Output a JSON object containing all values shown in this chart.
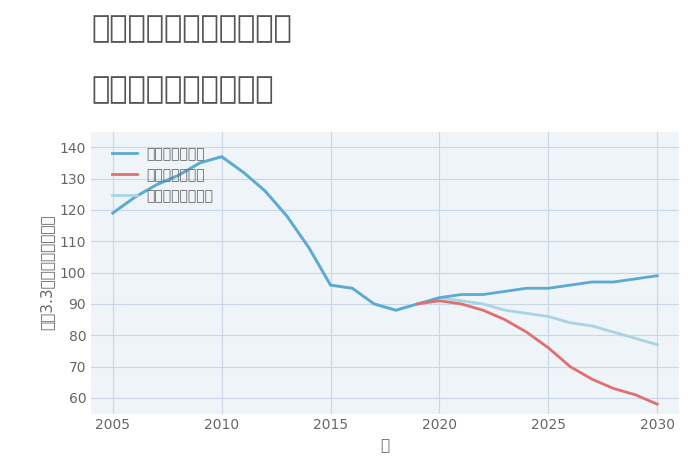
{
  "title_line1": "兵庫県豊岡市出石町嶋の",
  "title_line2": "中古戸建ての価格推移",
  "xlabel": "年",
  "ylabel": "坪（3.3㎡）単価（万円）",
  "background_color": "#ffffff",
  "grid_color": "#c8d8e8",
  "plot_bg_color": "#eef4f8",
  "good_scenario": {
    "label": "グッドシナリオ",
    "color": "#5baad0",
    "years": [
      2005,
      2006,
      2007,
      2008,
      2009,
      2010,
      2011,
      2012,
      2013,
      2014,
      2015,
      2016,
      2017,
      2018,
      2019,
      2020,
      2021,
      2022,
      2023,
      2024,
      2025,
      2026,
      2027,
      2028,
      2029,
      2030
    ],
    "values": [
      119,
      124,
      128,
      131,
      135,
      137,
      132,
      126,
      118,
      108,
      96,
      95,
      90,
      88,
      90,
      92,
      93,
      93,
      94,
      95,
      95,
      96,
      97,
      97,
      98,
      99
    ]
  },
  "bad_scenario": {
    "label": "バッドシナリオ",
    "color": "#e07070",
    "years": [
      2019,
      2020,
      2021,
      2022,
      2023,
      2024,
      2025,
      2026,
      2027,
      2028,
      2029,
      2030
    ],
    "values": [
      90,
      91,
      90,
      88,
      85,
      81,
      76,
      70,
      66,
      63,
      61,
      58
    ]
  },
  "normal_scenario": {
    "label": "ノーマルシナリオ",
    "color": "#a8d4e4",
    "years": [
      2005,
      2006,
      2007,
      2008,
      2009,
      2010,
      2011,
      2012,
      2013,
      2014,
      2015,
      2016,
      2017,
      2018,
      2019,
      2020,
      2021,
      2022,
      2023,
      2024,
      2025,
      2026,
      2027,
      2028,
      2029,
      2030
    ],
    "values": [
      119,
      124,
      128,
      131,
      135,
      137,
      132,
      126,
      118,
      108,
      96,
      95,
      90,
      88,
      90,
      92,
      91,
      90,
      88,
      87,
      86,
      84,
      83,
      81,
      79,
      77
    ]
  },
  "xlim": [
    2004,
    2031
  ],
  "ylim": [
    55,
    145
  ],
  "yticks": [
    60,
    70,
    80,
    90,
    100,
    110,
    120,
    130,
    140
  ],
  "xticks": [
    2005,
    2010,
    2015,
    2020,
    2025,
    2030
  ],
  "title_fontsize": 22,
  "axis_label_fontsize": 11,
  "tick_fontsize": 10,
  "legend_fontsize": 10,
  "title_color": "#555555",
  "tick_color": "#666666"
}
